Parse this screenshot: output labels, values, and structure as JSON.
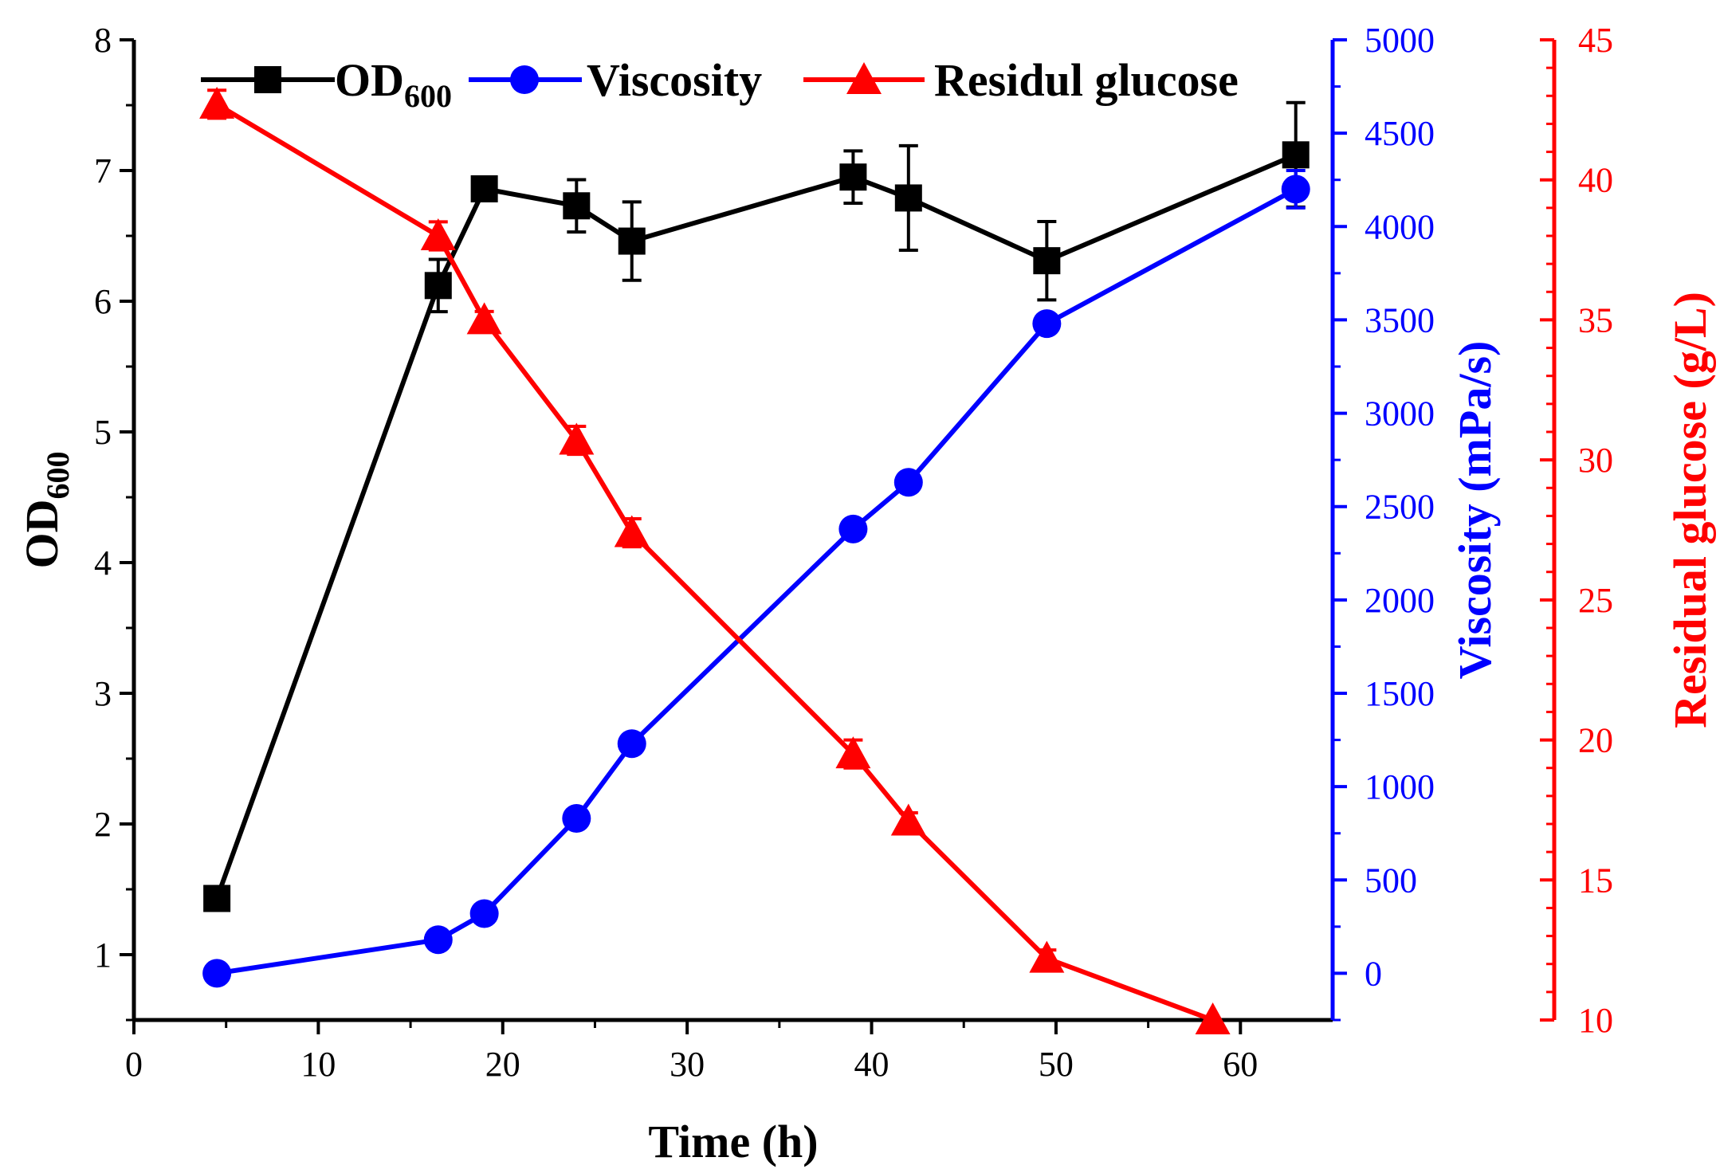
{
  "chart_data": {
    "type": "line",
    "xlabel": "Time (h)",
    "xlim": [
      0,
      65
    ],
    "xticks": [
      0,
      10,
      20,
      30,
      40,
      50,
      60
    ],
    "grid": false,
    "legend_position": "top",
    "axes": [
      {
        "id": "od",
        "side": "left",
        "label_main": "OD",
        "label_sub": "600",
        "ylim": [
          0.5,
          8
        ],
        "ticks": [
          1,
          2,
          3,
          4,
          5,
          6,
          7,
          8
        ],
        "color": "#000000"
      },
      {
        "id": "visc",
        "side": "right-inner",
        "label": "Viscosity (mPa/s)",
        "ylim": [
          -250,
          5000
        ],
        "ticks": [
          0,
          500,
          1000,
          1500,
          2000,
          2500,
          3000,
          3500,
          4000,
          4500,
          5000
        ],
        "color": "#0000FF"
      },
      {
        "id": "glu",
        "side": "right-outer",
        "label": "Residual glucose (g/L)",
        "ylim": [
          10,
          45
        ],
        "ticks": [
          10,
          15,
          20,
          25,
          30,
          35,
          40,
          45
        ],
        "color": "#FF0000"
      }
    ],
    "series": [
      {
        "name": "OD",
        "name_sub": "600",
        "axis": "od",
        "color": "#000000",
        "marker": "square",
        "x": [
          4.5,
          16.5,
          19,
          24,
          27,
          39,
          42,
          49.5,
          63
        ],
        "y": [
          1.43,
          6.12,
          6.86,
          6.73,
          6.46,
          6.95,
          6.79,
          6.31,
          7.12
        ],
        "err": [
          0.05,
          0.2,
          0.05,
          0.2,
          0.3,
          0.2,
          0.4,
          0.3,
          0.4
        ]
      },
      {
        "name": "Viscosity",
        "axis": "visc",
        "color": "#0000FF",
        "marker": "circle",
        "x": [
          4.5,
          16.5,
          19,
          24,
          27,
          39,
          42,
          49.5,
          63
        ],
        "y": [
          0,
          180,
          320,
          830,
          1230,
          2380,
          2630,
          3480,
          4200
        ],
        "err": [
          0,
          0,
          40,
          0,
          0,
          0,
          0,
          0,
          100
        ]
      },
      {
        "name": "Residul glucose",
        "axis": "glu",
        "color": "#FF0000",
        "marker": "triangle",
        "x": [
          4.5,
          16.5,
          19,
          24,
          27,
          39,
          42,
          49.5,
          58.5
        ],
        "y": [
          42.7,
          38.0,
          35.0,
          30.7,
          27.4,
          19.5,
          17.1,
          12.2,
          10.0
        ],
        "err": [
          0.5,
          0.5,
          0.3,
          0.5,
          0.5,
          0.5,
          0.3,
          0.3,
          0
        ]
      }
    ]
  }
}
